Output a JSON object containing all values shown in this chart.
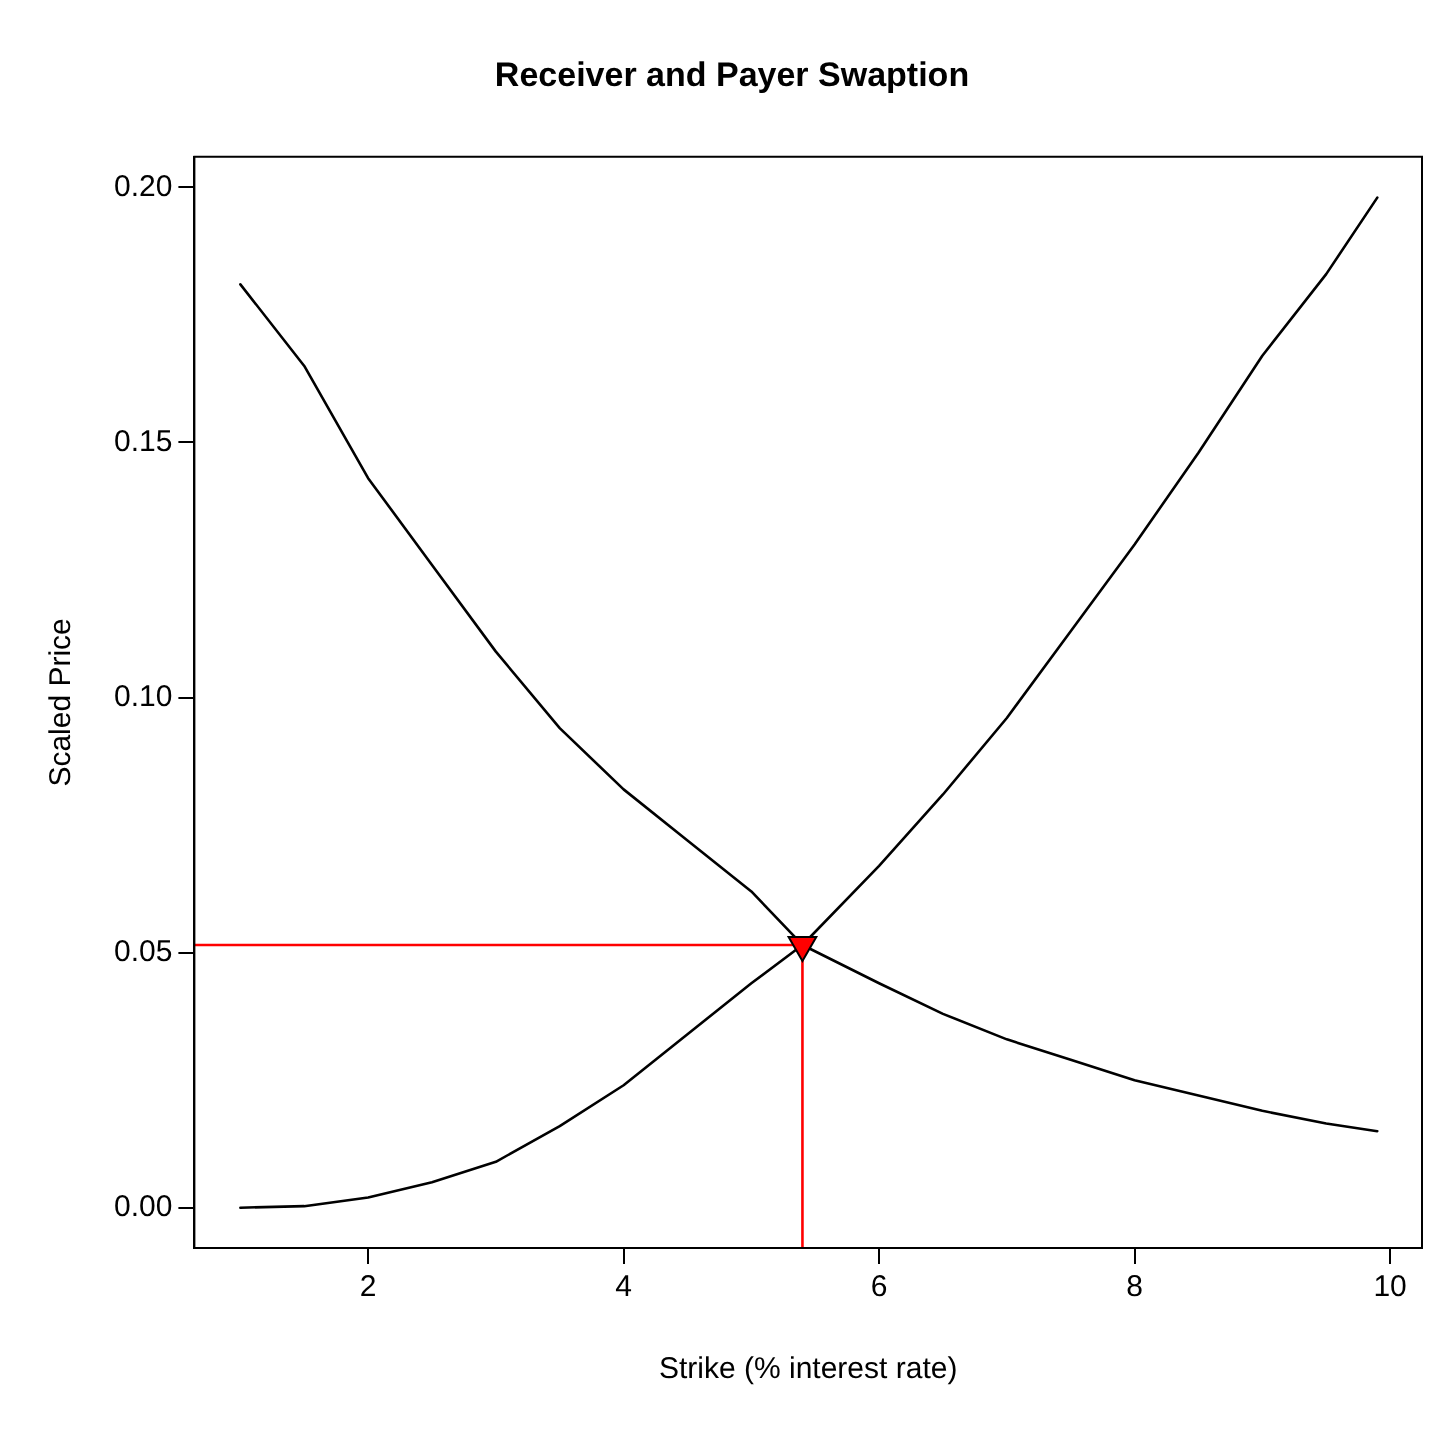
{
  "chart_data": {
    "type": "line",
    "title": "Receiver and Payer Swaption",
    "xlabel": "Strike (% interest rate)",
    "ylabel": "Scaled Price",
    "xlim": [
      0.64,
      10.25
    ],
    "ylim": [
      -0.0079,
      0.206
    ],
    "xticks": [
      2,
      4,
      6,
      8,
      10
    ],
    "yticks": [
      {
        "value": 0,
        "label": "0.00"
      },
      {
        "value": 0.05,
        "label": "0.05"
      },
      {
        "value": 0.1,
        "label": "0.10"
      },
      {
        "value": 0.15,
        "label": "0.15"
      },
      {
        "value": 0.2,
        "label": "0.20"
      }
    ],
    "grid": false,
    "legend": false,
    "marker": "none",
    "line_style": "solid",
    "series": [
      {
        "type": "line",
        "color": "#000000",
        "x": [
          1,
          1.5,
          2,
          2.5,
          3,
          3.5,
          4,
          4.5,
          5,
          5.4,
          6,
          6.5,
          7,
          7.5,
          8,
          8.5,
          9,
          9.5,
          9.9
        ],
        "values": [
          0.181,
          0.165,
          0.143,
          0.126,
          0.109,
          0.094,
          0.082,
          0.072,
          0.062,
          0.0515,
          0.044,
          0.038,
          0.033,
          0.029,
          0.025,
          0.022,
          0.019,
          0.0165,
          0.015
        ]
      },
      {
        "type": "line",
        "color": "#000000",
        "x": [
          1,
          1.5,
          2,
          2.5,
          3,
          3.5,
          4,
          4.5,
          5,
          5.4,
          6,
          6.5,
          7,
          7.5,
          8,
          8.5,
          9,
          9.5,
          9.9
        ],
        "values": [
          0,
          0.0003,
          0.002,
          0.005,
          0.009,
          0.016,
          0.024,
          0.034,
          0.044,
          0.0515,
          0.067,
          0.081,
          0.096,
          0.113,
          0.13,
          0.148,
          0.167,
          0.183,
          0.198
        ]
      },
      {
        "type": "line",
        "color": "#ff0000",
        "x": [
          0.64,
          5.4
        ],
        "values": [
          0.0515,
          0.0515
        ]
      },
      {
        "type": "line",
        "color": "#ff0000",
        "x": [
          5.4,
          5.4
        ],
        "values": [
          -0.0079,
          0.0515
        ]
      },
      {
        "type": "scatter",
        "color": "#ff0000",
        "marker": "triangle",
        "x": [
          5.4
        ],
        "values": [
          0.0515
        ]
      }
    ]
  }
}
